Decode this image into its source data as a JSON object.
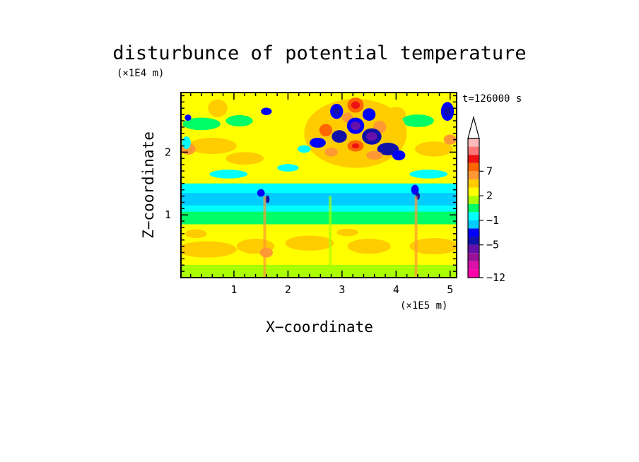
{
  "chart_data": {
    "type": "heatmap",
    "title": "disturbunce of potential temperature",
    "time_label": "t=126000 s",
    "xlabel": "X−coordinate",
    "ylabel": "Z−coordinate",
    "x_scale_label": "(×1E5 m)",
    "y_scale_label": "(×1E4 m)",
    "xlim": [
      0.02,
      5.12
    ],
    "ylim": [
      0.0,
      2.95
    ],
    "x_ticks": [
      1,
      2,
      3,
      4,
      5
    ],
    "y_ticks": [
      1,
      2
    ],
    "grid": false,
    "legend_placement": "right",
    "colorbar": {
      "levels": [
        -12,
        -11,
        -9,
        -7,
        -5,
        -4,
        -2,
        -1,
        0,
        1,
        2,
        4,
        5,
        7,
        8,
        9
      ],
      "tick_labels": [
        "−12",
        "−5",
        "−1",
        "2",
        "7"
      ],
      "tick_values": [
        -12,
        -5,
        -1,
        2,
        7
      ],
      "colors": [
        "#ff00aa",
        "#dd11aa",
        "#991199",
        "#6611aa",
        "#1111aa",
        "#0000ff",
        "#00ccff",
        "#00ffff",
        "#00ff66",
        "#aaff00",
        "#ffff00",
        "#ffcc00",
        "#ff9933",
        "#ff6600",
        "#ee1111",
        "#ff7777",
        "#ffbbbb",
        "#ffffff"
      ],
      "extend_top": true
    },
    "features": [
      {
        "name": "background",
        "x": [
          0.02,
          5.12
        ],
        "z": [
          0.0,
          2.95
        ],
        "level": 0
      },
      {
        "name": "low-level warm band",
        "x": [
          0.02,
          5.12
        ],
        "z": [
          0.25,
          0.85
        ],
        "level": 2
      },
      {
        "name": "surface layer",
        "x": [
          0.02,
          5.12
        ],
        "z": [
          0.0,
          0.25
        ],
        "level": 1
      },
      {
        "name": "mid-level cool band",
        "x": [
          0.02,
          5.12
        ],
        "z": [
          1.05,
          1.5
        ],
        "level": -1
      },
      {
        "name": "upper warm layer",
        "x": [
          0.02,
          5.12
        ],
        "z": [
          1.5,
          2.1
        ],
        "level": 2
      },
      {
        "name": "wave packet",
        "x": [
          2.2,
          4.3
        ],
        "z": [
          1.65,
          2.95
        ],
        "level": "±7"
      }
    ]
  }
}
